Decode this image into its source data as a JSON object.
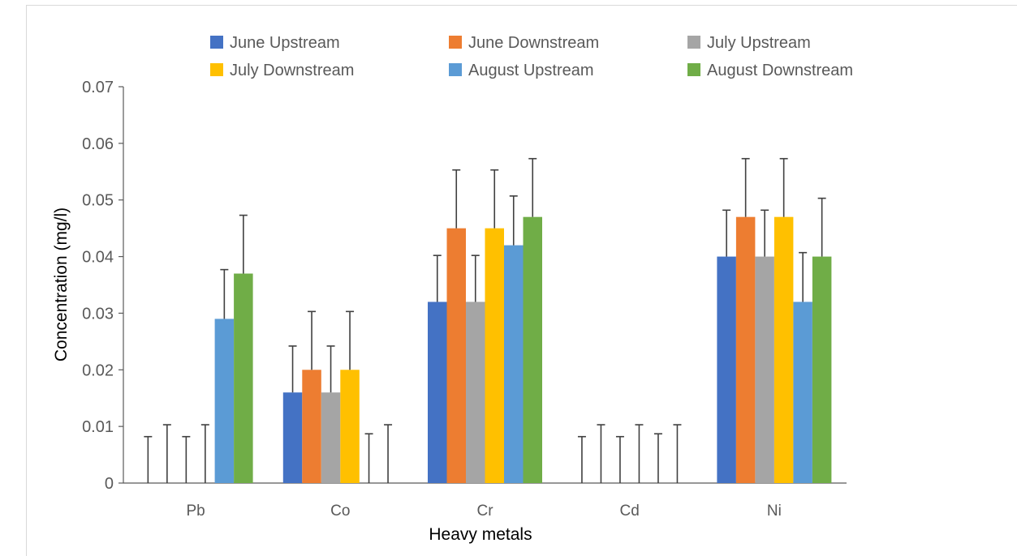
{
  "chart_data": {
    "type": "bar",
    "categories": [
      "Pb",
      "Co",
      "Cr",
      "Cd",
      "Ni"
    ],
    "series": [
      {
        "name": "June Upstream",
        "color": "#4472c4",
        "values": [
          0,
          0.016,
          0.032,
          0,
          0.04
        ],
        "errors": [
          0.0082,
          0.0082,
          0.0082,
          0.0082,
          0.0082
        ]
      },
      {
        "name": "June Downstream",
        "color": "#ed7d31",
        "values": [
          0,
          0.02,
          0.045,
          0,
          0.047
        ],
        "errors": [
          0.0103,
          0.0103,
          0.0103,
          0.0103,
          0.0103
        ]
      },
      {
        "name": "July Upstream",
        "color": "#a5a5a5",
        "values": [
          0,
          0.016,
          0.032,
          0,
          0.04
        ],
        "errors": [
          0.0082,
          0.0082,
          0.0082,
          0.0082,
          0.0082
        ]
      },
      {
        "name": "July Downstream",
        "color": "#ffc000",
        "values": [
          0,
          0.02,
          0.045,
          0,
          0.047
        ],
        "errors": [
          0.0103,
          0.0103,
          0.0103,
          0.0103,
          0.0103
        ]
      },
      {
        "name": "August Upstream",
        "color": "#5b9bd5",
        "values": [
          0.029,
          0,
          0.042,
          0,
          0.032
        ],
        "errors": [
          0.0087,
          0.0087,
          0.0087,
          0.0087,
          0.0087
        ]
      },
      {
        "name": "August Downstream",
        "color": "#70ad47",
        "values": [
          0.037,
          0,
          0.047,
          0,
          0.04
        ],
        "errors": [
          0.0103,
          0.0103,
          0.0103,
          0.0103,
          0.0103
        ]
      }
    ],
    "yticks": [
      "0",
      "0.01",
      "0.02",
      "0.03",
      "0.04",
      "0.05",
      "0.06",
      "0.07"
    ],
    "ylim": [
      0,
      0.07
    ],
    "xlabel": "Heavy metals",
    "ylabel": "Concentration (mg/l)",
    "legend_position": "top",
    "grid": false
  }
}
